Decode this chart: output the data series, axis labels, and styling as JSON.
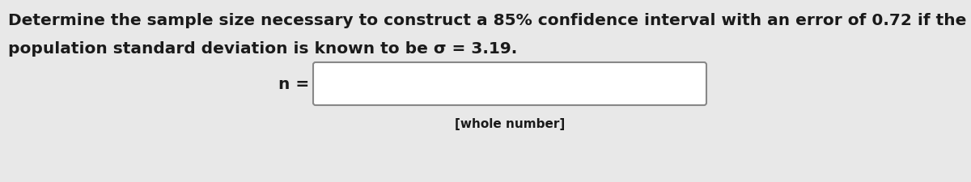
{
  "line1": "Determine the sample size necessary to construct a 85% confidence interval with an error of 0.72 if the",
  "line2": "population standard deviation is known to be σ = 3.19.",
  "label_n": "n =",
  "sublabel": "[whole number]",
  "bg_color": "#e8e8e8",
  "text_color": "#1a1a1a",
  "fontsize_main": 14.5,
  "fontsize_label": 14.5,
  "fontsize_sublabel": 11.0
}
